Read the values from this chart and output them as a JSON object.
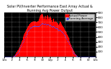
{
  "title": "Solar PV/Inverter Performance East Array Actual & Running Avg Power Output",
  "bg_color": "#ffffff",
  "plot_bg_color": "#000000",
  "grid_color": "#888888",
  "bar_color": "#ff0000",
  "avg_color": "#4444ff",
  "num_bars": 144,
  "ylim": [
    0,
    900
  ],
  "yticks": [
    100,
    200,
    300,
    400,
    500,
    600,
    700,
    800,
    900
  ],
  "bar_values": [
    0,
    0,
    0,
    0,
    0,
    0,
    0,
    0,
    0,
    0,
    0,
    0,
    2,
    5,
    10,
    18,
    30,
    45,
    60,
    80,
    100,
    120,
    145,
    170,
    200,
    235,
    270,
    305,
    340,
    375,
    410,
    445,
    480,
    510,
    540,
    565,
    590,
    615,
    635,
    655,
    670,
    685,
    695,
    705,
    710,
    715,
    718,
    720,
    718,
    715,
    710,
    720,
    715,
    690,
    730,
    780,
    820,
    850,
    860,
    870,
    860,
    820,
    780,
    810,
    830,
    800,
    760,
    820,
    840,
    810,
    770,
    800,
    820,
    790,
    750,
    710,
    760,
    780,
    750,
    720,
    700,
    730,
    710,
    690,
    670,
    650,
    680,
    720,
    700,
    680,
    660,
    640,
    620,
    600,
    575,
    550,
    525,
    500,
    470,
    440,
    410,
    375,
    340,
    305,
    270,
    235,
    200,
    165,
    135,
    108,
    84,
    62,
    44,
    28,
    15,
    6,
    2,
    0,
    0,
    0,
    0,
    0,
    0,
    0,
    0,
    0,
    0,
    0,
    0,
    0,
    0,
    0,
    0,
    0,
    0,
    0,
    0,
    0,
    0,
    0,
    0,
    0,
    0,
    0
  ],
  "avg_values": [
    0,
    0,
    0,
    0,
    0,
    0,
    0,
    0,
    0,
    0,
    0,
    0,
    1,
    3,
    6,
    12,
    20,
    30,
    42,
    56,
    72,
    90,
    110,
    132,
    156,
    182,
    210,
    238,
    268,
    298,
    328,
    358,
    388,
    416,
    444,
    470,
    494,
    516,
    536,
    554,
    570,
    584,
    596,
    606,
    614,
    620,
    624,
    626,
    626,
    624,
    620,
    622,
    621,
    615,
    625,
    638,
    652,
    665,
    672,
    678,
    680,
    672,
    660,
    664,
    668,
    660,
    648,
    656,
    660,
    650,
    636,
    640,
    644,
    635,
    622,
    608,
    616,
    618,
    606,
    592,
    578,
    582,
    572,
    558,
    544,
    528,
    534,
    544,
    532,
    518,
    504,
    488,
    472,
    454,
    436,
    416,
    396,
    374,
    352,
    328,
    304,
    278,
    252,
    224,
    196,
    168,
    140,
    112,
    86,
    68,
    52,
    38,
    26,
    16,
    8,
    3,
    1,
    0,
    0,
    0,
    0,
    0,
    0,
    0,
    0,
    0,
    0,
    0,
    0,
    0,
    0,
    0,
    0,
    0,
    0,
    0,
    0,
    0,
    0,
    0,
    0,
    0,
    0,
    0
  ],
  "xtick_positions": [
    0,
    12,
    24,
    36,
    48,
    60,
    72,
    84,
    96,
    108,
    120,
    132,
    143
  ],
  "xtick_labels": [
    "12a",
    "2",
    "4",
    "6",
    "8",
    "10",
    "12p",
    "2",
    "4",
    "6",
    "8",
    "10",
    "12a"
  ],
  "legend_labels": [
    "Actual Power",
    "Running Average"
  ],
  "title_fontsize": 3.5,
  "tick_fontsize": 3.0,
  "legend_fontsize": 3.0
}
